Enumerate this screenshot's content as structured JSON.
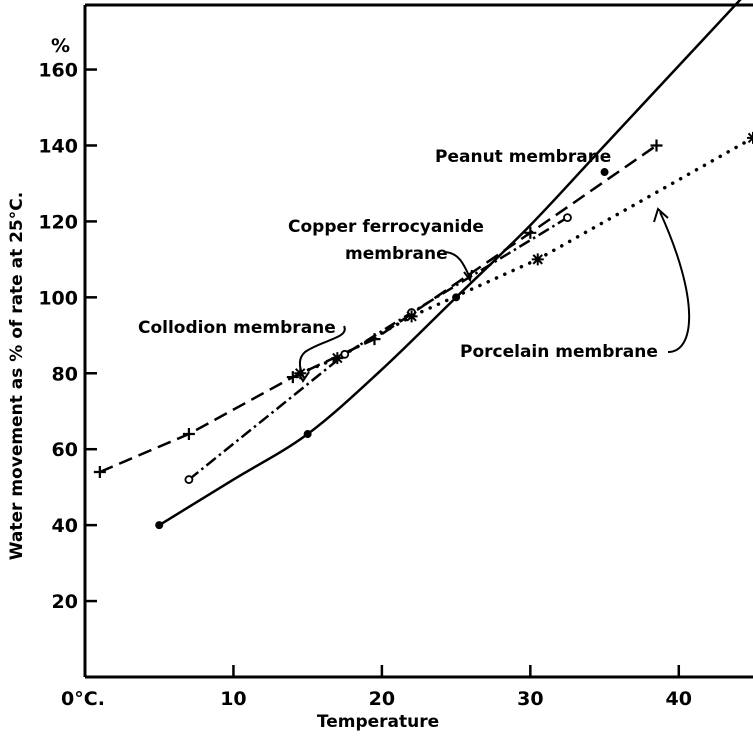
{
  "chart_data": {
    "type": "line",
    "title": "",
    "xlabel": "Temperature",
    "ylabel": "Water movement as % of rate at 25°C.",
    "y_unit_label": "%",
    "xlim": [
      0,
      45
    ],
    "ylim": [
      0,
      177
    ],
    "x_ticks": [
      {
        "value": 0,
        "label": "0°C."
      },
      {
        "value": 10,
        "label": "10"
      },
      {
        "value": 20,
        "label": "20"
      },
      {
        "value": 30,
        "label": "30"
      },
      {
        "value": 40,
        "label": "40"
      }
    ],
    "y_ticks": [
      {
        "value": 20,
        "label": "20"
      },
      {
        "value": 40,
        "label": "40"
      },
      {
        "value": 60,
        "label": "60"
      },
      {
        "value": 80,
        "label": "80"
      },
      {
        "value": 100,
        "label": "100"
      },
      {
        "value": 120,
        "label": "120"
      },
      {
        "value": 140,
        "label": "140"
      },
      {
        "value": 160,
        "label": "160"
      }
    ],
    "grid": false,
    "legend": "none (series labelled by annotations)",
    "series": [
      {
        "name": "Peanut membrane",
        "style": "solid",
        "marker": "filled-circle",
        "points": [
          [
            5,
            40
          ],
          [
            15,
            64
          ],
          [
            25,
            100
          ],
          [
            35,
            133
          ]
        ],
        "curve_through": [
          [
            5,
            40
          ],
          [
            10,
            52
          ],
          [
            15,
            64
          ],
          [
            20,
            81
          ],
          [
            25,
            100
          ],
          [
            30,
            119
          ],
          [
            35,
            140
          ],
          [
            40,
            161
          ],
          [
            45,
            182
          ]
        ]
      },
      {
        "name": "Collodion membrane",
        "style": "dashed",
        "marker": "plus",
        "points": [
          [
            1,
            54
          ],
          [
            7,
            64
          ],
          [
            14,
            79
          ],
          [
            19.5,
            89
          ],
          [
            30,
            117
          ],
          [
            38.5,
            140
          ]
        ]
      },
      {
        "name": "Copper ferrocyanide membrane",
        "style": "dash-dot",
        "marker": "open-circle",
        "points": [
          [
            7,
            52
          ],
          [
            17.5,
            85
          ],
          [
            22,
            96
          ],
          [
            32.5,
            121
          ]
        ]
      },
      {
        "name": "Porcelain membrane",
        "style": "dotted",
        "marker": "asterisk",
        "points": [
          [
            14.5,
            80
          ],
          [
            17,
            84
          ],
          [
            22,
            95
          ],
          [
            30.5,
            110
          ],
          [
            45,
            142
          ]
        ]
      }
    ],
    "annotations": [
      {
        "text": "Peanut membrane",
        "series": "Peanut membrane"
      },
      {
        "text": "Copper ferrocyanide",
        "series": "Copper ferrocyanide membrane"
      },
      {
        "text": "membrane",
        "series": "Copper ferrocyanide membrane"
      },
      {
        "text": "Collodion membrane",
        "series": "Collodion membrane"
      },
      {
        "text": "Porcelain membrane",
        "series": "Porcelain membrane"
      }
    ]
  }
}
